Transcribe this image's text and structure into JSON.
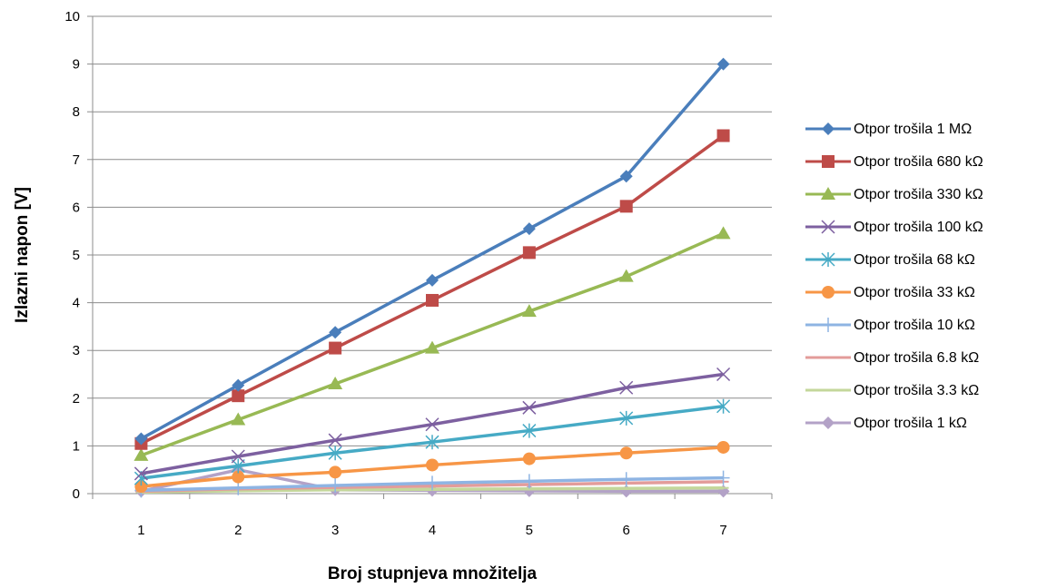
{
  "chart_data": {
    "type": "line",
    "title": "",
    "xlabel": "Broj stupnjeva množitelja",
    "ylabel": "Izlazni napon [V]",
    "categories": [
      "1",
      "2",
      "3",
      "4",
      "5",
      "6",
      "7"
    ],
    "ylim": [
      0,
      10
    ],
    "yticks": [
      "0",
      "1",
      "2",
      "3",
      "4",
      "5",
      "6",
      "7",
      "8",
      "9",
      "10"
    ],
    "grid": "horizontal",
    "legend": "right",
    "series": [
      {
        "name": "Otpor trošila 1 MΩ",
        "color": "#4a7ebb",
        "marker": "diamond",
        "values": [
          1.15,
          2.27,
          3.38,
          4.47,
          5.55,
          6.65,
          9.0
        ]
      },
      {
        "name": "Otpor trošila 680 kΩ",
        "color": "#be4b48",
        "marker": "square",
        "values": [
          1.05,
          2.05,
          3.05,
          4.05,
          5.05,
          6.02,
          7.5
        ]
      },
      {
        "name": "Otpor trošila 330 kΩ",
        "color": "#98b954",
        "marker": "triangle",
        "values": [
          0.8,
          1.55,
          2.3,
          3.05,
          3.82,
          4.55,
          5.45
        ]
      },
      {
        "name": "Otpor trošila 100 kΩ",
        "color": "#7d60a0",
        "marker": "x",
        "values": [
          0.42,
          0.78,
          1.12,
          1.45,
          1.8,
          2.22,
          2.5
        ]
      },
      {
        "name": "Otpor trošila 68 kΩ",
        "color": "#46aac5",
        "marker": "star",
        "values": [
          0.32,
          0.58,
          0.85,
          1.08,
          1.32,
          1.58,
          1.83
        ]
      },
      {
        "name": "Otpor trošila 33 kΩ",
        "color": "#f79646",
        "marker": "circle",
        "values": [
          0.15,
          0.35,
          0.45,
          0.6,
          0.73,
          0.85,
          0.97
        ]
      },
      {
        "name": "Otpor trošila 10 kΩ",
        "color": "#8eb4e3",
        "marker": "plus",
        "values": [
          0.07,
          0.12,
          0.17,
          0.22,
          0.26,
          0.3,
          0.33
        ]
      },
      {
        "name": "Otpor trošila 6.8 kΩ",
        "color": "#e39c9a",
        "marker": "dash",
        "values": [
          0.05,
          0.1,
          0.13,
          0.16,
          0.19,
          0.22,
          0.25
        ]
      },
      {
        "name": "Otpor trošila 3.3 kΩ",
        "color": "#c4d79b",
        "marker": "dash",
        "values": [
          0.03,
          0.06,
          0.08,
          0.09,
          0.1,
          0.11,
          0.12
        ]
      },
      {
        "name": "Otpor trošila 1 kΩ",
        "color": "#b3a2c7",
        "marker": "diamond",
        "values": [
          0.05,
          0.5,
          0.08,
          0.07,
          0.06,
          0.05,
          0.05
        ]
      }
    ]
  }
}
